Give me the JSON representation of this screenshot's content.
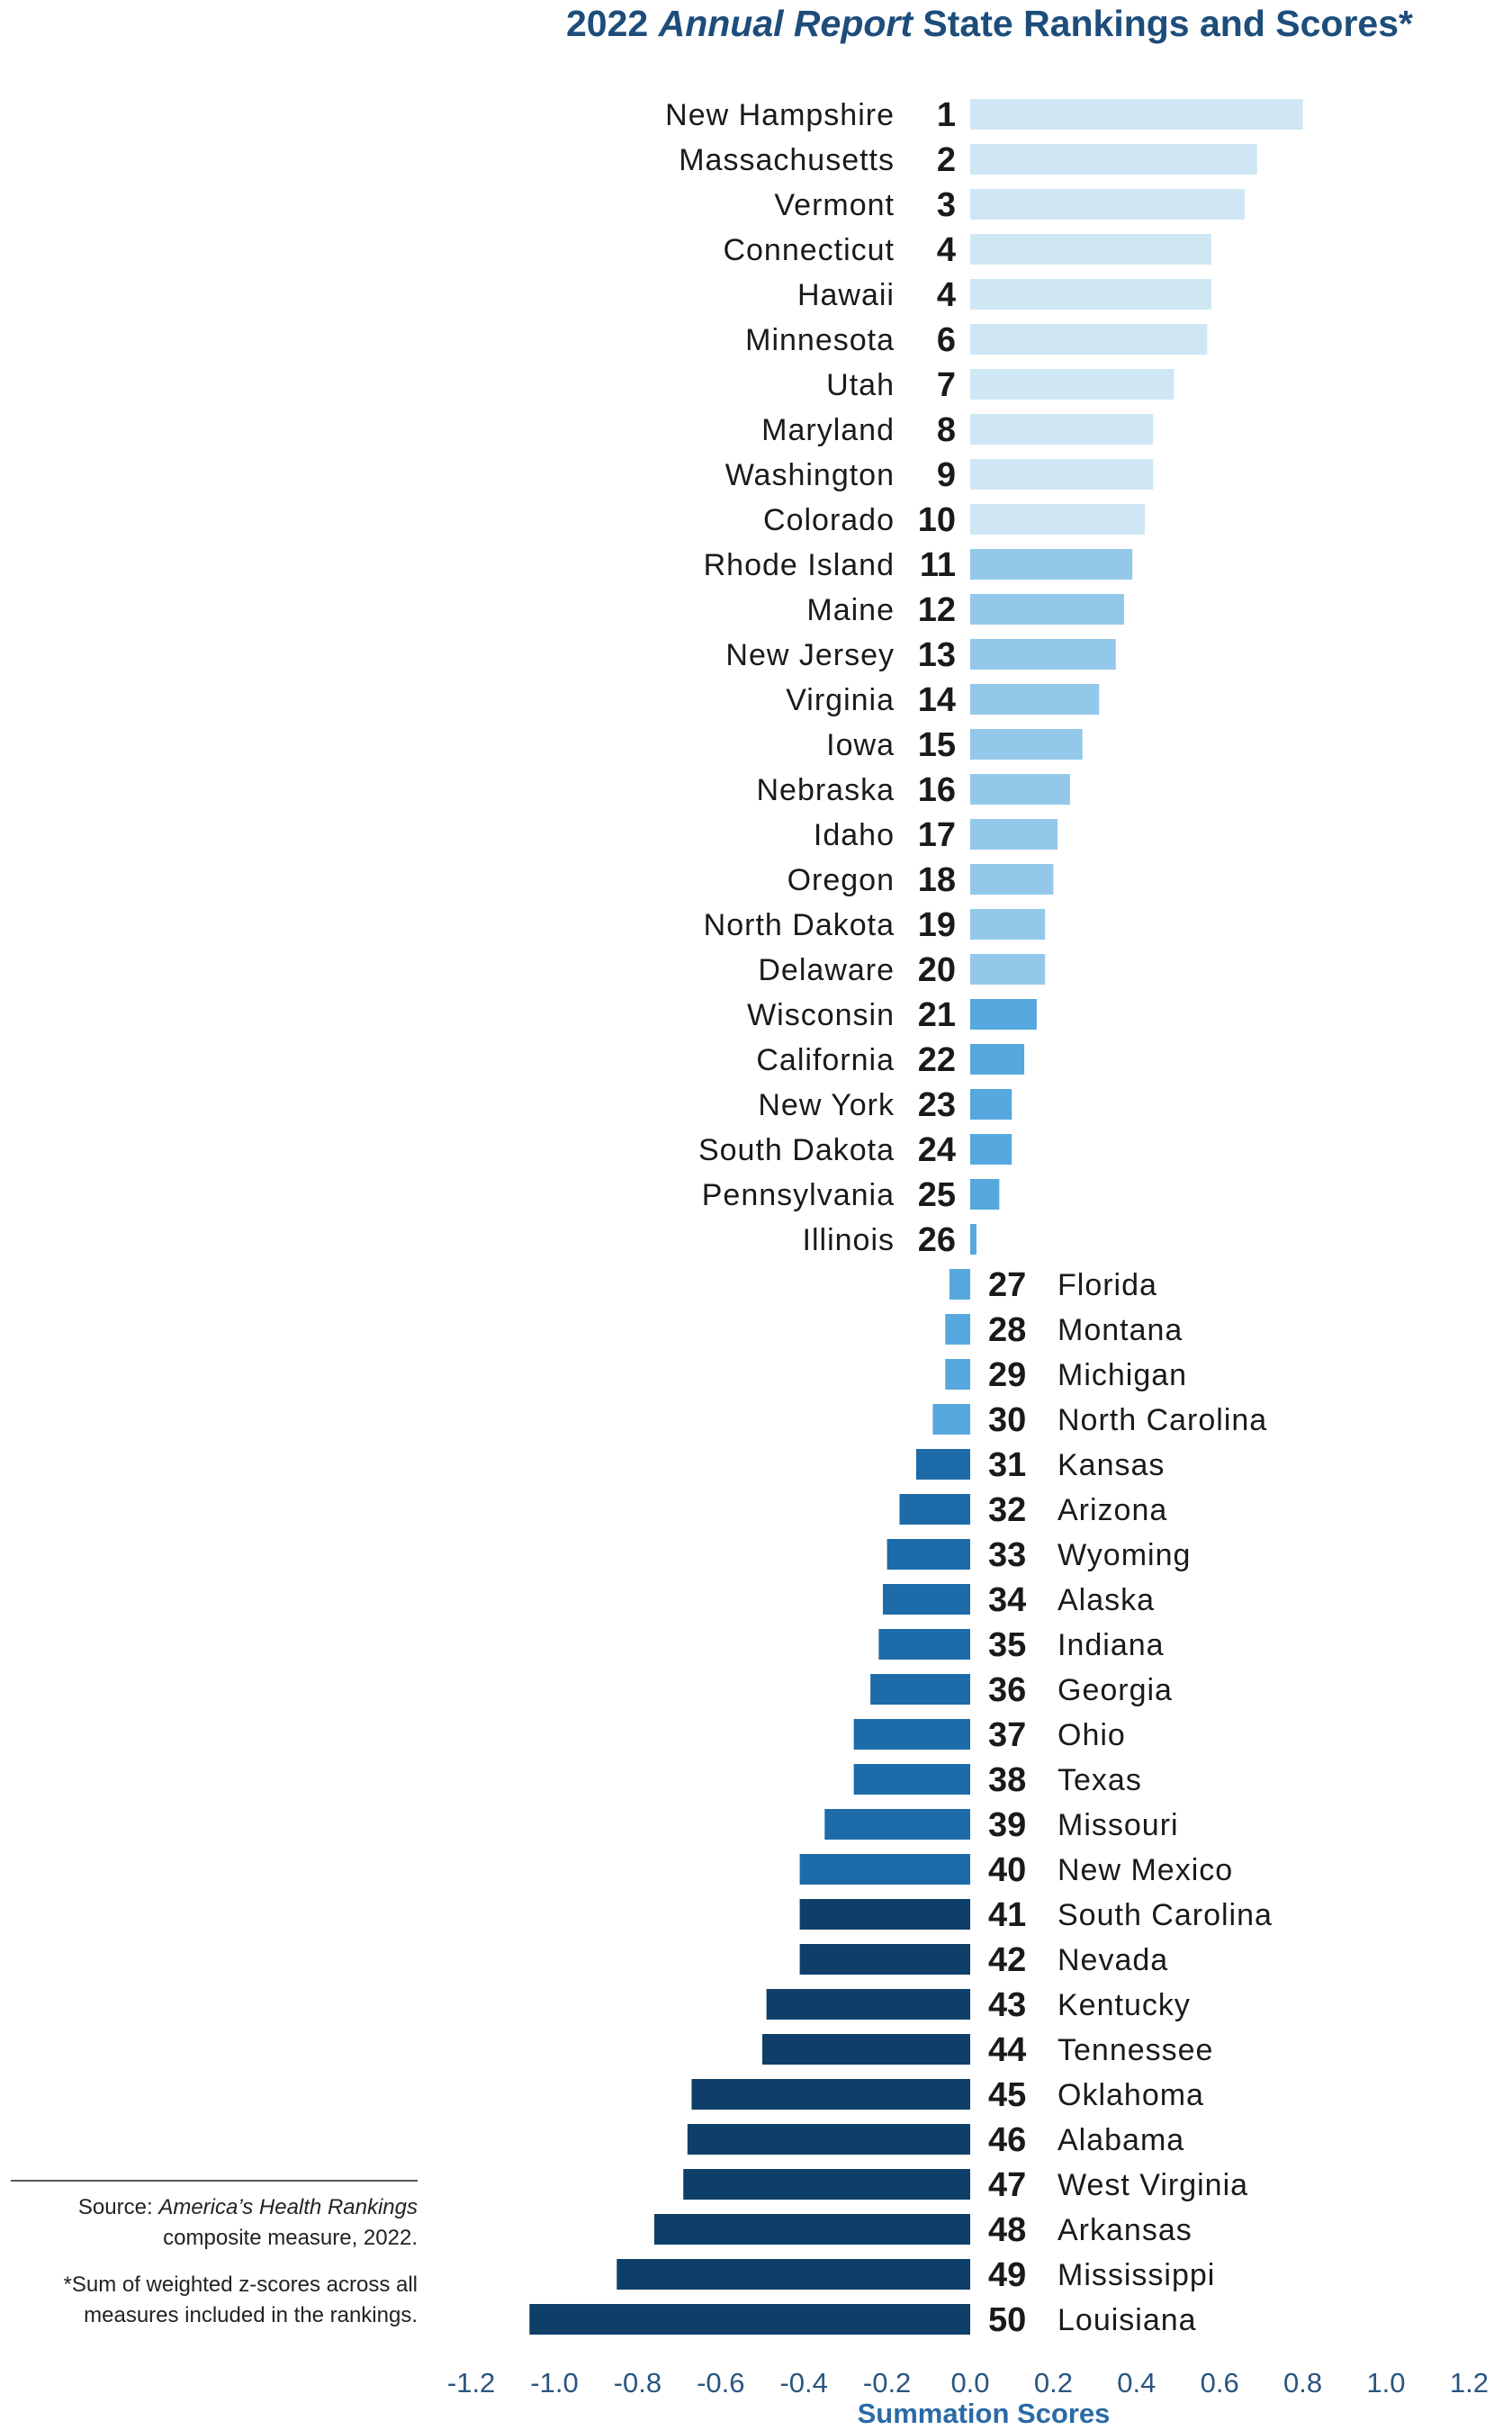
{
  "chart_data": {
    "type": "bar",
    "orientation": "horizontal",
    "title_parts": [
      "2022 ",
      "Annual Report",
      " State Rankings and Scores*"
    ],
    "xlabel": "Summation Scores",
    "ylabel": "",
    "xlim": [
      -1.2,
      1.2
    ],
    "x_ticks": [
      "-1.2",
      "-1.0",
      "-0.8",
      "-0.6",
      "-0.4",
      "-0.2",
      "0.0",
      "0.2",
      "0.4",
      "0.6",
      "0.8",
      "1.0",
      "1.2"
    ],
    "grid": false,
    "color_tiers": [
      {
        "ranks": "1-10",
        "color": "#cfe7f5"
      },
      {
        "ranks": "11-20",
        "color": "#93c8ea"
      },
      {
        "ranks": "21-30",
        "color": "#56a8de"
      },
      {
        "ranks": "31-40",
        "color": "#1d6ba8"
      },
      {
        "ranks": "41-50",
        "color": "#0e3f68"
      }
    ],
    "states": [
      {
        "rank": "1",
        "name": "New Hampshire",
        "value": 0.8
      },
      {
        "rank": "2",
        "name": "Massachusetts",
        "value": 0.69
      },
      {
        "rank": "3",
        "name": "Vermont",
        "value": 0.66
      },
      {
        "rank": "4",
        "name": "Connecticut",
        "value": 0.58
      },
      {
        "rank": "4",
        "name": "Hawaii",
        "value": 0.58
      },
      {
        "rank": "6",
        "name": "Minnesota",
        "value": 0.57
      },
      {
        "rank": "7",
        "name": "Utah",
        "value": 0.49
      },
      {
        "rank": "8",
        "name": "Maryland",
        "value": 0.44
      },
      {
        "rank": "9",
        "name": "Washington",
        "value": 0.44
      },
      {
        "rank": "10",
        "name": "Colorado",
        "value": 0.42
      },
      {
        "rank": "11",
        "name": "Rhode Island",
        "value": 0.39
      },
      {
        "rank": "12",
        "name": "Maine",
        "value": 0.37
      },
      {
        "rank": "13",
        "name": "New Jersey",
        "value": 0.35
      },
      {
        "rank": "14",
        "name": "Virginia",
        "value": 0.31
      },
      {
        "rank": "15",
        "name": "Iowa",
        "value": 0.27
      },
      {
        "rank": "16",
        "name": "Nebraska",
        "value": 0.24
      },
      {
        "rank": "17",
        "name": "Idaho",
        "value": 0.21
      },
      {
        "rank": "18",
        "name": "Oregon",
        "value": 0.2
      },
      {
        "rank": "19",
        "name": "North Dakota",
        "value": 0.18
      },
      {
        "rank": "20",
        "name": "Delaware",
        "value": 0.18
      },
      {
        "rank": "21",
        "name": "Wisconsin",
        "value": 0.16
      },
      {
        "rank": "22",
        "name": "California",
        "value": 0.13
      },
      {
        "rank": "23",
        "name": "New York",
        "value": 0.1
      },
      {
        "rank": "24",
        "name": "South Dakota",
        "value": 0.1
      },
      {
        "rank": "25",
        "name": "Pennsylvania",
        "value": 0.07
      },
      {
        "rank": "26",
        "name": "Illinois",
        "value": 0.015
      },
      {
        "rank": "27",
        "name": "Florida",
        "value": -0.05
      },
      {
        "rank": "28",
        "name": "Montana",
        "value": -0.06
      },
      {
        "rank": "29",
        "name": "Michigan",
        "value": -0.06
      },
      {
        "rank": "30",
        "name": "North Carolina",
        "value": -0.09
      },
      {
        "rank": "31",
        "name": "Kansas",
        "value": -0.13
      },
      {
        "rank": "32",
        "name": "Arizona",
        "value": -0.17
      },
      {
        "rank": "33",
        "name": "Wyoming",
        "value": -0.2
      },
      {
        "rank": "34",
        "name": "Alaska",
        "value": -0.21
      },
      {
        "rank": "35",
        "name": "Indiana",
        "value": -0.22
      },
      {
        "rank": "36",
        "name": "Georgia",
        "value": -0.24
      },
      {
        "rank": "37",
        "name": "Ohio",
        "value": -0.28
      },
      {
        "rank": "38",
        "name": "Texas",
        "value": -0.28
      },
      {
        "rank": "39",
        "name": "Missouri",
        "value": -0.35
      },
      {
        "rank": "40",
        "name": "New Mexico",
        "value": -0.41
      },
      {
        "rank": "41",
        "name": "South Carolina",
        "value": -0.41
      },
      {
        "rank": "42",
        "name": "Nevada",
        "value": -0.41
      },
      {
        "rank": "43",
        "name": "Kentucky",
        "value": -0.49
      },
      {
        "rank": "44",
        "name": "Tennessee",
        "value": -0.5
      },
      {
        "rank": "45",
        "name": "Oklahoma",
        "value": -0.67
      },
      {
        "rank": "46",
        "name": "Alabama",
        "value": -0.68
      },
      {
        "rank": "47",
        "name": "West Virginia",
        "value": -0.69
      },
      {
        "rank": "48",
        "name": "Arkansas",
        "value": -0.76
      },
      {
        "rank": "49",
        "name": "Mississippi",
        "value": -0.85
      },
      {
        "rank": "50",
        "name": "Louisiana",
        "value": -1.06
      }
    ]
  },
  "notes": {
    "source_prefix": "Source: ",
    "source_title": "America’s Health Rankings",
    "source_suffix": "composite measure, 2022.",
    "footnote_line1": "*Sum of weighted z-scores across all",
    "footnote_line2": "measures included in the rankings."
  }
}
